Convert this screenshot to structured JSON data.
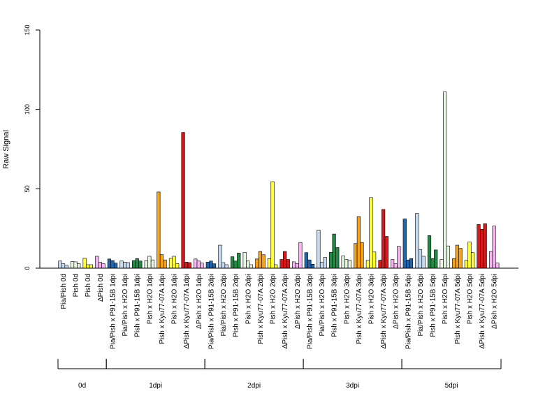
{
  "chart_data": {
    "type": "bar",
    "ylabel": "Raw Signal",
    "ylim": [
      0,
      150
    ],
    "yticks": [
      0,
      50,
      100,
      150
    ],
    "grid": false,
    "colors": {
      "light_blue": "#c6dbef",
      "dark_blue": "#2166ac",
      "pale_green": "#e5f5e0",
      "dark_green": "#238b45",
      "orange": "#f7a21b",
      "yellow": "#ffff33",
      "red": "#d7191c",
      "pink": "#f7b6f2"
    },
    "categories": [
      {
        "label": "Pia/Pish 0d",
        "color": "light_blue",
        "values": [
          4.5,
          2.8,
          1.8
        ]
      },
      {
        "label": "Pish 0d",
        "color": "pale_green",
        "values": [
          4.2,
          4.0,
          2.8
        ]
      },
      {
        "label": "Pish 0d",
        "color": "yellow",
        "values": [
          6.2,
          2.2,
          2.2
        ]
      },
      {
        "label": "ΔPish 0d",
        "color": "pink",
        "values": [
          7.5,
          3.8,
          2.8
        ]
      },
      {
        "label": "Pia/Pish x P91-15B 1dpi",
        "color": "dark_blue",
        "values": [
          5.8,
          4.8,
          3.2
        ]
      },
      {
        "label": "Pia/Pish x H2O 1dpi",
        "color": "light_blue",
        "values": [
          4.5,
          3.8,
          3.5
        ]
      },
      {
        "label": "Pish x P91-15B 1dpi",
        "color": "dark_green",
        "values": [
          4.8,
          6.0,
          4.5
        ]
      },
      {
        "label": "Pish x H2O 1dpi",
        "color": "pale_green",
        "values": [
          4.8,
          7.5,
          5.2
        ]
      },
      {
        "label": "Pish x Kyu77-07A 1dpi",
        "color": "orange",
        "values": [
          48,
          8.5,
          5.2
        ]
      },
      {
        "label": "Pish x H2O 1dpi",
        "color": "yellow",
        "values": [
          6.2,
          7.5,
          2.8
        ]
      },
      {
        "label": "ΔPish x Kyu77-07A 1dpi",
        "color": "red",
        "values": [
          85.5,
          3.8,
          3.5
        ]
      },
      {
        "label": "ΔPish x H2O 1dpi",
        "color": "pink",
        "values": [
          5.8,
          4.5,
          3.2
        ]
      },
      {
        "label": "Pia/Pish x P91-15B 2dpi",
        "color": "dark_blue",
        "values": [
          3.8,
          4.5,
          2.8
        ]
      },
      {
        "label": "Pia/Pish x H2O 2dpi",
        "color": "light_blue",
        "values": [
          14.5,
          3.5,
          2.2
        ]
      },
      {
        "label": "Pish x P91-15B 2dpi",
        "color": "dark_green",
        "values": [
          7.2,
          4.5,
          9.5
        ]
      },
      {
        "label": "Pish x H2O 2dpi",
        "color": "pale_green",
        "values": [
          10,
          4.5,
          2.2
        ]
      },
      {
        "label": "Pish x Kyu77-07A 2dpi",
        "color": "orange",
        "values": [
          5.8,
          10.5,
          8.5
        ]
      },
      {
        "label": "Pish x H2O 2dpi",
        "color": "yellow",
        "values": [
          6.0,
          54.5,
          2.2
        ]
      },
      {
        "label": "ΔPish x Kyu77-07A 2dpi",
        "color": "red",
        "values": [
          5.5,
          10.5,
          5.5
        ]
      },
      {
        "label": "ΔPish x H2O 2dpi",
        "color": "pink",
        "values": [
          4.0,
          2.8,
          16.2
        ]
      },
      {
        "label": "Pia/Pish x P91-15B 3dpi",
        "color": "dark_blue",
        "values": [
          9.8,
          5.2,
          2.5
        ]
      },
      {
        "label": "Pia/Pish x H2O 3dpi",
        "color": "light_blue",
        "values": [
          24,
          3.8,
          6.8
        ]
      },
      {
        "label": "Pish x P91-15B 3dpi",
        "color": "dark_green",
        "values": [
          10,
          21.5,
          13
        ]
      },
      {
        "label": "Pish x H2O 3dpi",
        "color": "pale_green",
        "values": [
          7.8,
          5.5,
          5.0
        ]
      },
      {
        "label": "Pish x Kyu77-07A 3dpi",
        "color": "orange",
        "values": [
          15.5,
          32.5,
          16.2
        ]
      },
      {
        "label": "Pish x H2O 3dpi",
        "color": "yellow",
        "values": [
          5.0,
          44.5,
          10.2
        ]
      },
      {
        "label": "ΔPish x Kyu77-07A 3dpi",
        "color": "red",
        "values": [
          5.0,
          37,
          20
        ]
      },
      {
        "label": "ΔPish x H2O 3dpi",
        "color": "pink",
        "values": [
          5.5,
          2.8,
          13.8
        ]
      },
      {
        "label": "Pia/Pish x P91-15B 5dpi",
        "color": "dark_blue",
        "values": [
          31,
          5.2,
          6.0
        ]
      },
      {
        "label": "Pia/Pish x H2O 5dpi",
        "color": "light_blue",
        "values": [
          34.5,
          11.8,
          7.5
        ]
      },
      {
        "label": "Pish x P91-15B 5dpi",
        "color": "dark_green",
        "values": [
          20.5,
          6.0,
          11.5
        ]
      },
      {
        "label": "Pish x H2O 5dpi",
        "color": "pale_green",
        "values": [
          5.5,
          111,
          14
        ]
      },
      {
        "label": "Pish x Kyu77-07A 5dpi",
        "color": "orange",
        "values": [
          6.0,
          14.5,
          12.5
        ]
      },
      {
        "label": "Pish x H2O 5dpi",
        "color": "yellow",
        "values": [
          5.0,
          16.5,
          9.8
        ]
      },
      {
        "label": "ΔPish x Kyu77-07A 5dpi",
        "color": "red",
        "values": [
          27.5,
          24.5,
          28
        ]
      },
      {
        "label": "ΔPish x H2O 5dpi",
        "color": "pink",
        "values": [
          10.5,
          26.5,
          3.2
        ]
      }
    ],
    "groups": [
      {
        "label": "0d",
        "first": 0,
        "last": 3
      },
      {
        "label": "1dpi",
        "first": 4,
        "last": 11
      },
      {
        "label": "2dpi",
        "first": 12,
        "last": 19
      },
      {
        "label": "3dpi",
        "first": 20,
        "last": 27
      },
      {
        "label": "5dpi",
        "first": 28,
        "last": 35
      }
    ]
  }
}
